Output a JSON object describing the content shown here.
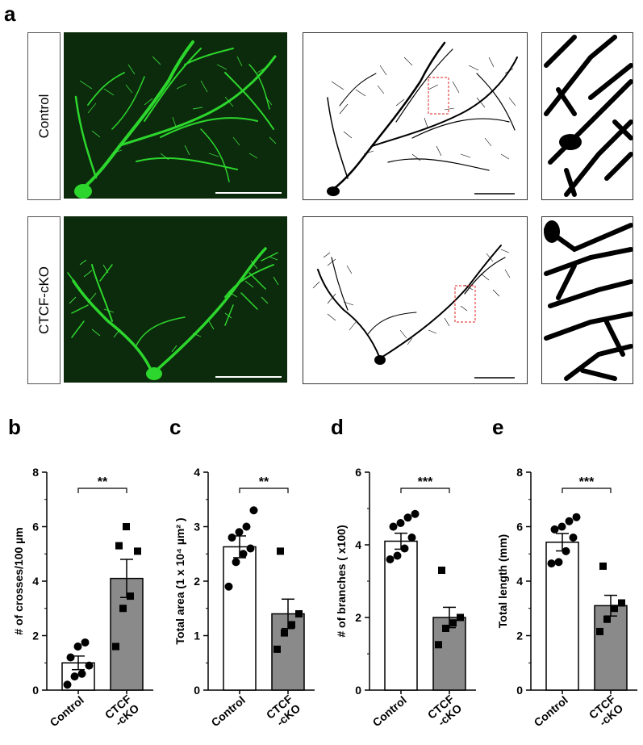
{
  "panel_a": {
    "letter": "a",
    "rows": [
      {
        "label": "Control"
      },
      {
        "label": "CTCF-cKO"
      }
    ]
  },
  "chart_data": [
    {
      "letter": "b",
      "type": "bar",
      "categories": [
        "Control",
        "CTCF\n-cKO"
      ],
      "values": [
        1.0,
        4.1
      ],
      "errors": [
        0.25,
        0.7
      ],
      "points": [
        [
          0.2,
          0.5,
          0.6,
          0.9,
          1.2,
          1.6,
          1.75
        ],
        [
          1.6,
          3.0,
          3.45,
          5.1,
          5.3,
          6.0
        ]
      ],
      "ylabel": "# of crosses/100 µm",
      "ylim": [
        0,
        8
      ],
      "yticks": [
        0,
        2,
        4,
        6,
        8
      ],
      "significance": "**",
      "bar_colors": [
        "#ffffff",
        "#8a8a8a"
      ]
    },
    {
      "letter": "c",
      "type": "bar",
      "categories": [
        "Control",
        "CTCF\n-cKO"
      ],
      "values": [
        2.63,
        1.4
      ],
      "errors": [
        0.2,
        0.27
      ],
      "points": [
        [
          1.9,
          2.35,
          2.5,
          2.6,
          2.8,
          2.9,
          3.0,
          3.3
        ],
        [
          0.75,
          1.05,
          1.2,
          1.4,
          2.55
        ]
      ],
      "ylabel": "Total area (1 x 10⁴ µm² )",
      "ylim": [
        0,
        4
      ],
      "yticks": [
        0,
        1,
        2,
        3,
        4
      ],
      "significance": "**",
      "bar_colors": [
        "#ffffff",
        "#8a8a8a"
      ]
    },
    {
      "letter": "d",
      "type": "bar",
      "categories": [
        "Control",
        "CTCF\n-cKO"
      ],
      "values": [
        4.1,
        2.0
      ],
      "errors": [
        0.22,
        0.28
      ],
      "points": [
        [
          3.6,
          3.7,
          3.9,
          4.2,
          4.5,
          4.6,
          4.75,
          4.85
        ],
        [
          1.25,
          1.7,
          1.85,
          2.0,
          3.3
        ]
      ],
      "ylabel": "# of branches ( x100)",
      "ylim": [
        0,
        6
      ],
      "yticks": [
        0,
        2,
        4,
        6
      ],
      "significance": "***",
      "bar_colors": [
        "#ffffff",
        "#8a8a8a"
      ]
    },
    {
      "letter": "e",
      "type": "bar",
      "categories": [
        "Control",
        "CTCF\n-cKO"
      ],
      "values": [
        5.43,
        3.1
      ],
      "errors": [
        0.32,
        0.38
      ],
      "points": [
        [
          4.65,
          4.7,
          5.1,
          5.6,
          5.9,
          6.0,
          6.2,
          6.35
        ],
        [
          2.15,
          2.6,
          3.0,
          3.2,
          4.55
        ]
      ],
      "ylabel": "Total length (mm)",
      "ylim": [
        0,
        8
      ],
      "yticks": [
        0,
        2,
        4,
        6,
        8
      ],
      "significance": "***",
      "bar_colors": [
        "#ffffff",
        "#8a8a8a"
      ]
    }
  ]
}
